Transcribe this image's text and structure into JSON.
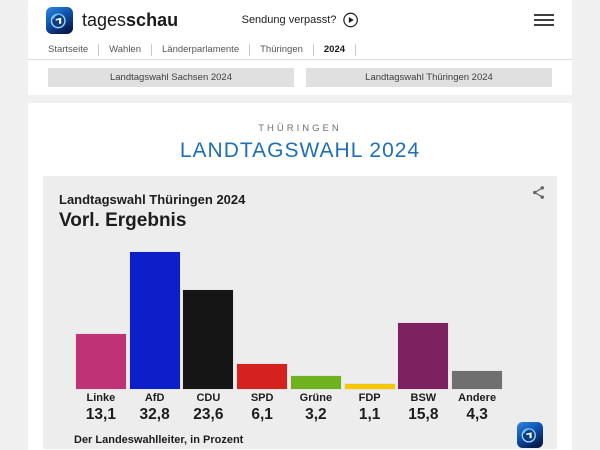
{
  "header": {
    "brand_light": "tages",
    "brand_bold": "schau",
    "watch_label": "Sendung verpasst?"
  },
  "breadcrumb": [
    "Startseite",
    "Wahlen",
    "Länderparlamente",
    "Thüringen",
    "2024"
  ],
  "tabs": [
    "Landtagswahl Sachsen 2024",
    "Landtagswahl Thüringen 2024"
  ],
  "page": {
    "kicker": "THÜRINGEN",
    "title": "LANDTAGSWAHL 2024"
  },
  "colors": {
    "accent_blue": "#1e6fba",
    "page_background": "#f0f0f0",
    "card_background": "#ededed"
  },
  "chart_data": {
    "type": "bar",
    "title": "Landtagswahl Thüringen 2024",
    "subtitle": "Vorl. Ergebnis",
    "source": "Der Landeswahlleiter, in Prozent",
    "unit": "Prozent",
    "categories": [
      "Linke",
      "AfD",
      "CDU",
      "SPD",
      "Grüne",
      "FDP",
      "BSW",
      "Andere"
    ],
    "values": [
      13.1,
      32.8,
      23.6,
      6.1,
      3.2,
      1.1,
      15.8,
      4.3
    ],
    "value_labels": [
      "13,1",
      "32,8",
      "23,6",
      "6,1",
      "3,2",
      "1,1",
      "15,8",
      "4,3"
    ],
    "colors": [
      "#bf3376",
      "#0c1fc9",
      "#151515",
      "#d6221f",
      "#6fb21e",
      "#f7c800",
      "#7e2161",
      "#6f6f6f"
    ],
    "ylim": [
      0,
      35
    ],
    "grid": false,
    "legend": false
  }
}
